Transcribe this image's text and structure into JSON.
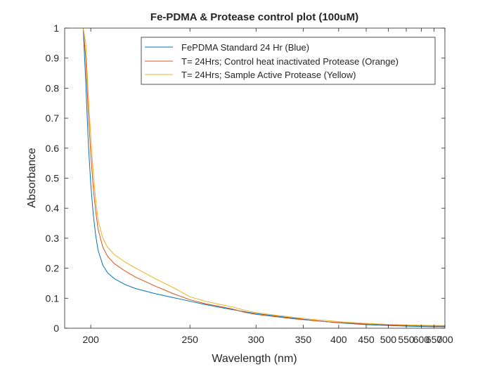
{
  "chart_data": {
    "type": "line",
    "title": "Fe-PDMA & Protease control plot (100uM)",
    "xlabel": "Wavelength (nm)",
    "ylabel": "Absorbance",
    "xlim": [
      190,
      700
    ],
    "ylim": [
      0,
      1
    ],
    "x_scale": "reciprocal",
    "xticks": [
      200,
      250,
      300,
      350,
      400,
      450,
      500,
      550,
      600,
      650,
      700
    ],
    "yticks": [
      0,
      0.1,
      0.2,
      0.3,
      0.4,
      0.5,
      0.6,
      0.7,
      0.8,
      0.9,
      1
    ],
    "grid": false,
    "legend_position": "top-right",
    "series": [
      {
        "name": "FePDMA Standard 24 Hr (Blue)",
        "color": "#0072BD",
        "x": [
          197,
          198,
          199,
          200,
          201,
          202,
          203,
          205,
          207,
          210,
          215,
          220,
          230,
          240,
          250,
          260,
          270,
          280,
          290,
          300,
          320,
          340,
          360,
          380,
          400,
          450,
          500,
          550,
          600,
          650,
          700
        ],
        "y": [
          1.0,
          0.82,
          0.62,
          0.48,
          0.38,
          0.31,
          0.26,
          0.21,
          0.185,
          0.165,
          0.145,
          0.132,
          0.115,
          0.102,
          0.09,
          0.079,
          0.07,
          0.062,
          0.055,
          0.049,
          0.04,
          0.033,
          0.027,
          0.022,
          0.018,
          0.012,
          0.009,
          0.007,
          0.006,
          0.005,
          0.005
        ]
      },
      {
        "name": "T= 24Hrs; Control heat inactivated Protease (Orange)",
        "color": "#D95319",
        "x": [
          197,
          198,
          199,
          200,
          201,
          202,
          203,
          205,
          207,
          210,
          215,
          220,
          230,
          240,
          250,
          260,
          270,
          280,
          290,
          300,
          320,
          340,
          360,
          380,
          400,
          450,
          500,
          550,
          600,
          650,
          700
        ],
        "y": [
          1.0,
          0.9,
          0.72,
          0.58,
          0.47,
          0.39,
          0.33,
          0.27,
          0.24,
          0.215,
          0.19,
          0.17,
          0.14,
          0.115,
          0.095,
          0.082,
          0.073,
          0.064,
          0.053,
          0.046,
          0.038,
          0.031,
          0.026,
          0.022,
          0.019,
          0.014,
          0.011,
          0.009,
          0.008,
          0.007,
          0.007
        ]
      },
      {
        "name": "T= 24Hrs; Sample Active Protease (Yellow)",
        "color": "#EDB120",
        "x": [
          197,
          198,
          199,
          200,
          201,
          202,
          203,
          205,
          207,
          210,
          215,
          220,
          230,
          240,
          250,
          260,
          270,
          280,
          290,
          300,
          320,
          340,
          360,
          380,
          400,
          450,
          500,
          550,
          600,
          650,
          700
        ],
        "y": [
          1.0,
          0.95,
          0.78,
          0.64,
          0.52,
          0.43,
          0.36,
          0.3,
          0.27,
          0.245,
          0.22,
          0.2,
          0.165,
          0.135,
          0.105,
          0.09,
          0.08,
          0.071,
          0.06,
          0.052,
          0.043,
          0.036,
          0.03,
          0.026,
          0.022,
          0.016,
          0.013,
          0.011,
          0.01,
          0.009,
          0.009
        ]
      }
    ]
  }
}
